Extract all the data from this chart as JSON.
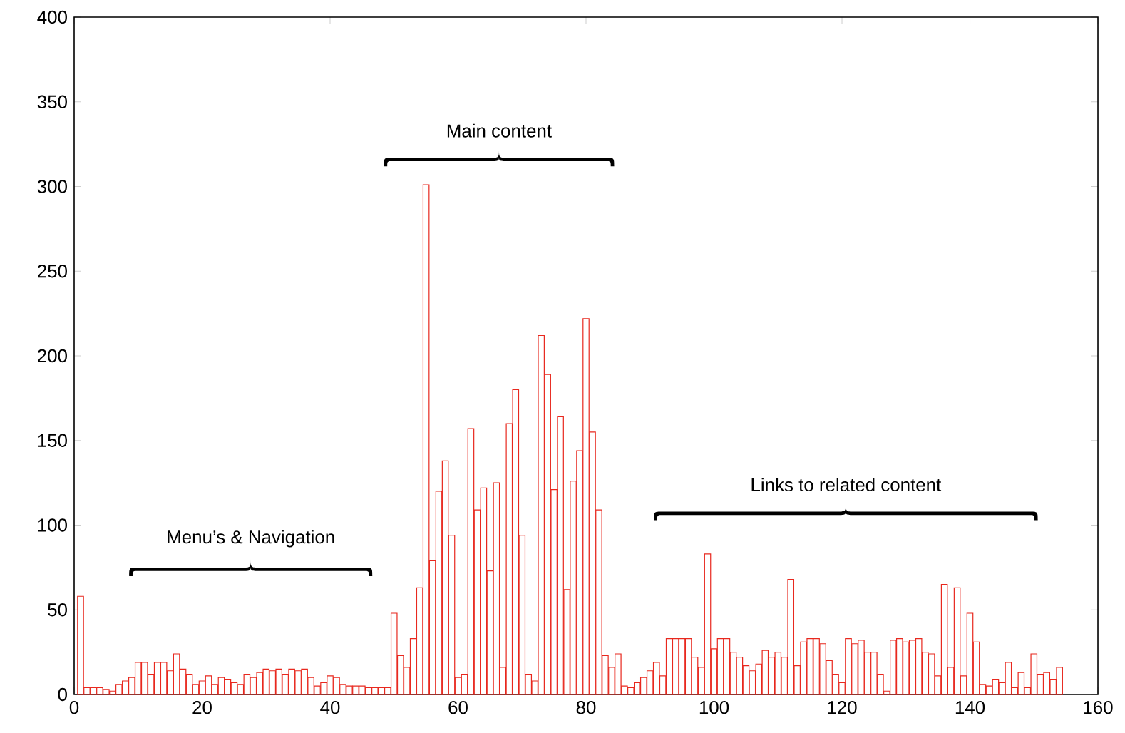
{
  "chart_data": {
    "type": "bar",
    "x": [
      1,
      2,
      3,
      4,
      5,
      6,
      7,
      8,
      9,
      10,
      11,
      12,
      13,
      14,
      15,
      16,
      17,
      18,
      19,
      20,
      21,
      22,
      23,
      24,
      25,
      26,
      27,
      28,
      29,
      30,
      31,
      32,
      33,
      34,
      35,
      36,
      37,
      38,
      39,
      40,
      41,
      42,
      43,
      44,
      45,
      46,
      47,
      48,
      49,
      50,
      51,
      52,
      53,
      54,
      55,
      56,
      57,
      58,
      59,
      60,
      61,
      62,
      63,
      64,
      65,
      66,
      67,
      68,
      69,
      70,
      71,
      72,
      73,
      74,
      75,
      76,
      77,
      78,
      79,
      80,
      81,
      82,
      83,
      84,
      85,
      86,
      87,
      88,
      89,
      90,
      91,
      92,
      93,
      94,
      95,
      96,
      97,
      98,
      99,
      100,
      101,
      102,
      103,
      104,
      105,
      106,
      107,
      108,
      109,
      110,
      111,
      112,
      113,
      114,
      115,
      116,
      117,
      118,
      119,
      120,
      121,
      122,
      123,
      124,
      125,
      126,
      127,
      128,
      129,
      130,
      131,
      132,
      133,
      134,
      135,
      136,
      137,
      138,
      139,
      140,
      141,
      142,
      143,
      144,
      145,
      146,
      147,
      148,
      149,
      150,
      151,
      152,
      153,
      154
    ],
    "values": [
      58,
      4,
      4,
      4,
      3,
      2,
      6,
      8,
      10,
      19,
      19,
      12,
      19,
      19,
      14,
      24,
      15,
      12,
      6,
      8,
      11,
      6,
      10,
      9,
      7,
      6,
      12,
      10,
      13,
      15,
      14,
      15,
      12,
      15,
      14,
      15,
      10,
      5,
      7,
      11,
      10,
      6,
      5,
      5,
      5,
      4,
      4,
      4,
      4,
      48,
      23,
      16,
      33,
      63,
      301,
      79,
      120,
      138,
      94,
      10,
      12,
      157,
      109,
      122,
      73,
      125,
      16,
      160,
      180,
      94,
      12,
      8,
      212,
      189,
      121,
      164,
      62,
      126,
      144,
      222,
      155,
      109,
      23,
      16,
      24,
      5,
      4,
      7,
      10,
      14,
      19,
      11,
      33,
      33,
      33,
      33,
      22,
      16,
      83,
      27,
      33,
      33,
      25,
      22,
      17,
      14,
      18,
      26,
      22,
      25,
      22,
      68,
      17,
      31,
      33,
      33,
      30,
      20,
      12,
      7,
      33,
      30,
      32,
      25,
      25,
      12,
      2,
      32,
      33,
      31,
      32,
      33,
      25,
      24,
      11,
      65,
      16,
      63,
      11,
      48,
      31,
      6,
      5,
      9,
      7,
      19,
      4,
      13,
      4,
      24,
      12,
      13,
      9,
      16
    ],
    "color": "#e8281e",
    "xlim": [
      0,
      160
    ],
    "ylim": [
      0,
      400
    ],
    "xticks": [
      0,
      20,
      40,
      60,
      80,
      100,
      120,
      140,
      160
    ],
    "yticks": [
      0,
      50,
      100,
      150,
      200,
      250,
      300,
      350,
      400
    ],
    "annotations": [
      "Menu’s & Navigation",
      "Main content",
      "Links to related content"
    ]
  }
}
